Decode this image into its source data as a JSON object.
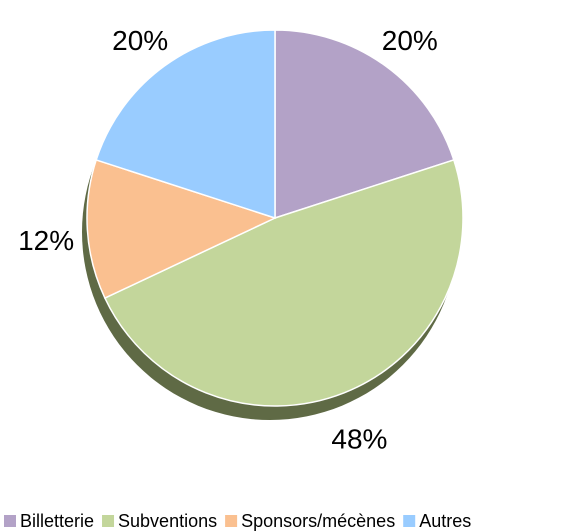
{
  "chart_data": {
    "type": "pie",
    "categories": [
      "Billetterie",
      "Subventions",
      "Sponsors/mécènes",
      "Autres"
    ],
    "values": [
      20,
      48,
      12,
      20
    ],
    "value_labels": [
      "20%",
      "48%",
      "12%",
      "20%"
    ],
    "colors": [
      "#b3a2c7",
      "#c3d69b",
      "#fac090",
      "#99ccff"
    ],
    "legend": "bottom"
  }
}
